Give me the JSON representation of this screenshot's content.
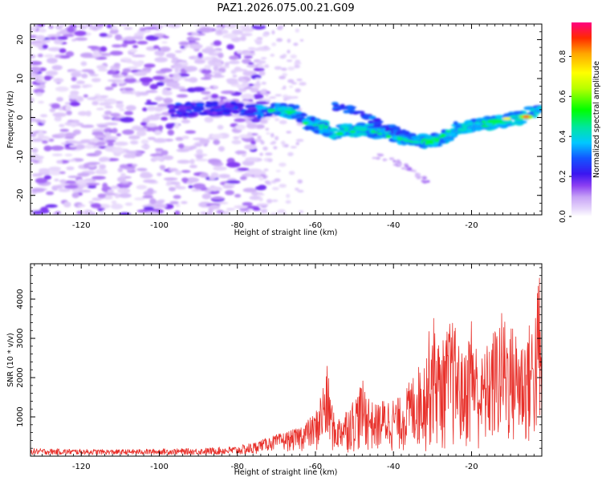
{
  "title": "PAZ1.2026.075.00.21.G09",
  "colors": {
    "snr_line": "#e8302a",
    "blob_faint": "#e2cdf8",
    "blob_mid": "#b98af0",
    "blob_strong": "#7a22f0",
    "frame": "#000000"
  },
  "colorbar": {
    "label": "Normalized spectral amplitude",
    "ticks": [
      "0.0",
      "0.2",
      "0.4",
      "0.6",
      "0.8"
    ],
    "tick_values": [
      0.0,
      0.2,
      0.4,
      0.6,
      0.8
    ],
    "range": [
      0.0,
      0.97
    ]
  },
  "chart_data": [
    {
      "type": "heatmap",
      "title": "PAZ1.2026.075.00.21.G09",
      "xlabel": "Height of straight line (km)",
      "ylabel": "Frequency (Hz)",
      "xlim": [
        -133,
        -2
      ],
      "ylim": [
        -25,
        24
      ],
      "xticks": [
        -120,
        -100,
        -80,
        -60,
        -40,
        -20
      ],
      "yticks": [
        -20,
        -10,
        0,
        10,
        20
      ],
      "xtick_labels": [
        "-120",
        "-100",
        "-80",
        "-60",
        "-40",
        "-20"
      ],
      "ytick_labels": [
        "-20",
        "-10",
        "0",
        "10",
        "20"
      ],
      "ridge": [
        [
          -95,
          2.0
        ],
        [
          -90,
          2.0
        ],
        [
          -85,
          2.5
        ],
        [
          -80,
          2.0
        ],
        [
          -75,
          1.5
        ],
        [
          -70,
          2.0
        ],
        [
          -65,
          1.5
        ],
        [
          -62,
          -1.5
        ],
        [
          -58,
          -2.5
        ],
        [
          -55,
          -4.0
        ],
        [
          -50,
          -3.0
        ],
        [
          -46,
          -3.5
        ],
        [
          -42,
          -4.0
        ],
        [
          -38,
          -5.0
        ],
        [
          -34,
          -6.0
        ],
        [
          -30,
          -6.0
        ],
        [
          -27,
          -5.0
        ],
        [
          -24,
          -3.0
        ],
        [
          -20,
          -2.0
        ],
        [
          -16,
          -1.5
        ],
        [
          -12,
          -1.0
        ],
        [
          -8,
          0.0
        ],
        [
          -5,
          1.0
        ],
        [
          -2,
          2.0
        ]
      ],
      "peak": {
        "x": -6,
        "y": 0.2,
        "value": 0.97
      },
      "side_branch": [
        [
          -55,
          3.0
        ],
        [
          -48,
          1.0
        ],
        [
          -44,
          -1.5
        ],
        [
          -36,
          -4.5
        ]
      ],
      "faint_tail": [
        [
          -44,
          -10
        ],
        [
          -38,
          -12
        ],
        [
          -32,
          -16
        ]
      ]
    },
    {
      "type": "line",
      "title": "",
      "xlabel": "Height of straight line (km)",
      "ylabel": "SNR (10 * v/v)",
      "xlim": [
        -133,
        -2
      ],
      "ylim": [
        0,
        4900
      ],
      "xticks": [
        -120,
        -100,
        -80,
        -60,
        -40,
        -20
      ],
      "yticks": [
        1000,
        2000,
        3000,
        4000
      ],
      "xtick_labels": [
        "-120",
        "-100",
        "-80",
        "-60",
        "-40",
        "-20"
      ],
      "ytick_labels": [
        "1000",
        "2000",
        "3000",
        "4000"
      ],
      "envelope": [
        [
          -133,
          200
        ],
        [
          -120,
          180
        ],
        [
          -110,
          170
        ],
        [
          -100,
          190
        ],
        [
          -90,
          200
        ],
        [
          -80,
          260
        ],
        [
          -75,
          380
        ],
        [
          -70,
          550
        ],
        [
          -65,
          700
        ],
        [
          -60,
          1100
        ],
        [
          -57,
          2300
        ],
        [
          -55,
          900
        ],
        [
          -50,
          1500
        ],
        [
          -48,
          1950
        ],
        [
          -45,
          1300
        ],
        [
          -42,
          1500
        ],
        [
          -38,
          1500
        ],
        [
          -35,
          2100
        ],
        [
          -32,
          2550
        ],
        [
          -30,
          3750
        ],
        [
          -28,
          2800
        ],
        [
          -25,
          3600
        ],
        [
          -22,
          2500
        ],
        [
          -20,
          3700
        ],
        [
          -18,
          2400
        ],
        [
          -15,
          3100
        ],
        [
          -12,
          3750
        ],
        [
          -10,
          3400
        ],
        [
          -7,
          3100
        ],
        [
          -4,
          3600
        ],
        [
          -2.5,
          4900
        ],
        [
          -2,
          1500
        ]
      ],
      "series": [
        {
          "name": "SNR",
          "color": "#e8302a"
        }
      ]
    }
  ]
}
